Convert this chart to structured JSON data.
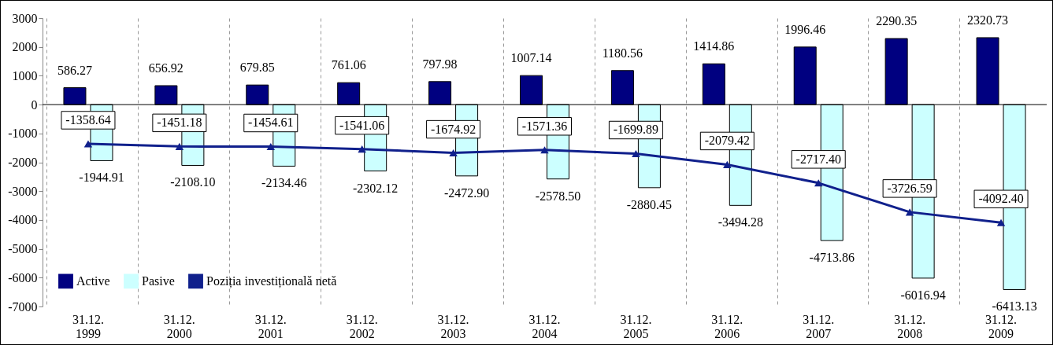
{
  "chart_data": {
    "type": "bar",
    "categories": [
      "31.12. 1999",
      "31.12. 2000",
      "31.12. 2001",
      "31.12. 2002",
      "31.12. 2003",
      "31.12. 2004",
      "31.12. 2005",
      "31.12. 2006",
      "31.12. 2007",
      "31.12. 2008",
      "31.12. 2009"
    ],
    "series": [
      {
        "name": "Active",
        "color": "#000080",
        "values": [
          586.27,
          656.92,
          679.85,
          761.06,
          797.98,
          1007.14,
          1180.56,
          1414.86,
          1996.46,
          2290.35,
          2320.73
        ],
        "value_labels": [
          "586.27",
          "656.92",
          "679.85",
          "761.06",
          "797.98",
          "1007.14",
          "1180.56",
          "1414.86",
          "1996.46",
          "2290.35",
          "2320.73"
        ]
      },
      {
        "name": "Pasive",
        "color": "#ccffff",
        "values": [
          -1944.91,
          -2108.1,
          -2134.46,
          -2302.12,
          -2472.9,
          -2578.5,
          -2880.45,
          -3494.28,
          -4713.86,
          -6016.94,
          -6413.13
        ],
        "value_labels": [
          "-1944.91",
          "-2108.10",
          "-2134.46",
          "-2302.12",
          "-2472.90",
          "-2578.50",
          "-2880.45",
          "-3494.28",
          "-4713.86",
          "-6016.94",
          "-6413.13"
        ]
      },
      {
        "name": "Poziția investițională netă",
        "type": "line",
        "color": "#10208c",
        "marker": "triangle",
        "line_style": "solid",
        "values": [
          -1358.64,
          -1451.18,
          -1454.61,
          -1541.06,
          -1674.92,
          -1571.36,
          -1699.89,
          -2079.42,
          -2717.4,
          -3726.59,
          -4092.4
        ],
        "value_labels": [
          "-1358.64",
          "-1451.18",
          "-1454.61",
          "-1541.06",
          "-1674.92",
          "-1571.36",
          "-1699.89",
          "-2079.42",
          "-2717.40",
          "-3726.59",
          "-4092.40"
        ]
      }
    ],
    "ylim": [
      -7000,
      3000
    ],
    "yticks": [
      {
        "value": -7000,
        "label": "-7000"
      },
      {
        "value": -6000,
        "label": "-6000"
      },
      {
        "value": -5000,
        "label": "-5000"
      },
      {
        "value": -4000,
        "label": "-4000"
      },
      {
        "value": -3000,
        "label": "-3000"
      },
      {
        "value": -2000,
        "label": "-2000"
      },
      {
        "value": -1000,
        "label": "-1000"
      },
      0,
      1000,
      2000,
      3000
    ],
    "ref_lines": [
      {
        "axis": "y",
        "value": 0
      }
    ],
    "grid": "x",
    "data_labels": true,
    "legend": "bottom left"
  }
}
